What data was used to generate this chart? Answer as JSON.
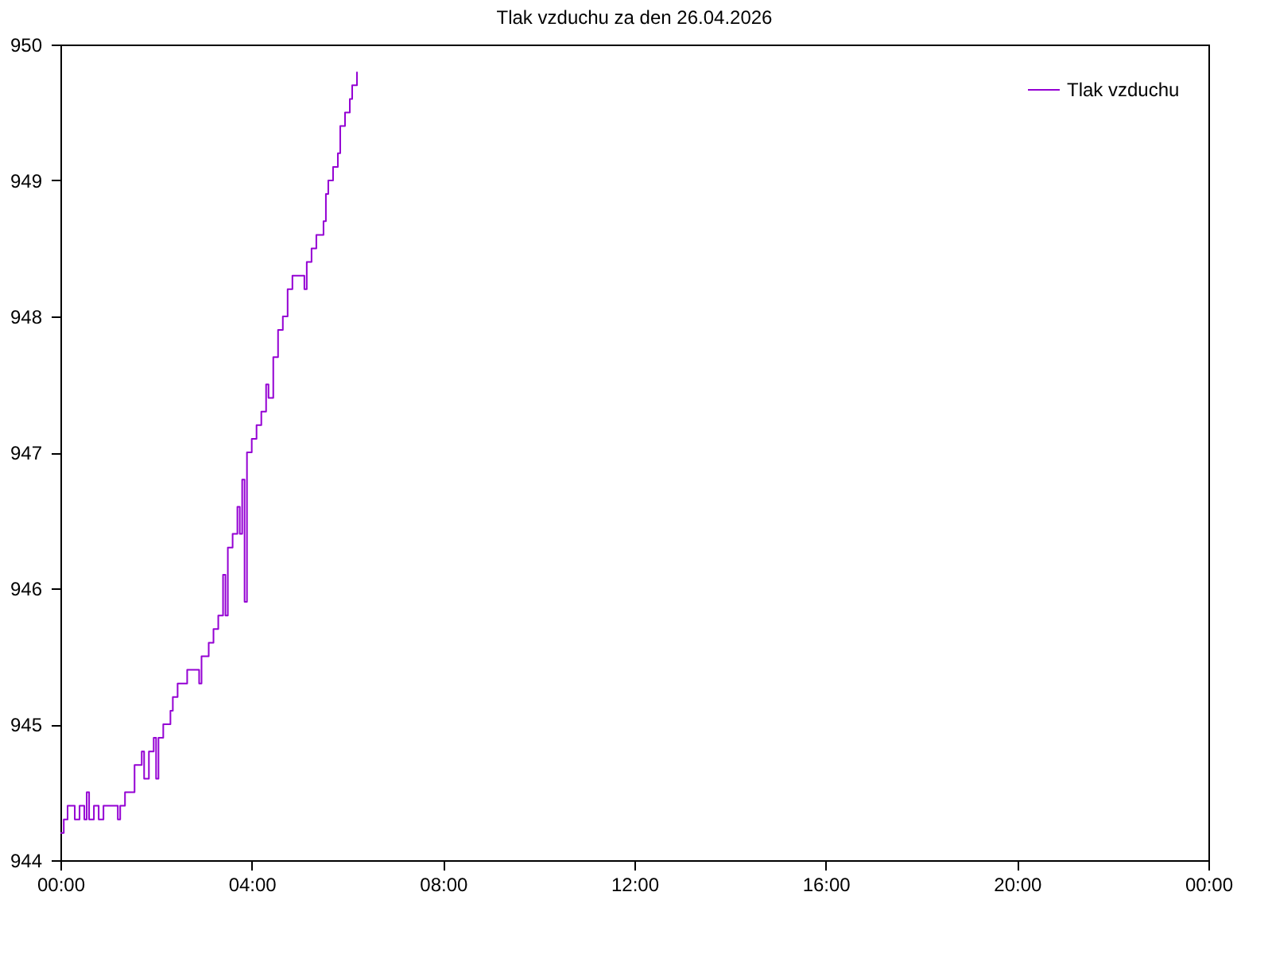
{
  "chart_data": {
    "type": "step",
    "title": "Tlak vzduchu za den 26.04.2026",
    "x": [
      0.0,
      0.07,
      0.15,
      0.3,
      0.4,
      0.5,
      0.55,
      0.6,
      0.7,
      0.8,
      0.9,
      1.1,
      1.2,
      1.25,
      1.35,
      1.5,
      1.55,
      1.65,
      1.7,
      1.75,
      1.85,
      1.95,
      2.0,
      2.05,
      2.15,
      2.3,
      2.35,
      2.45,
      2.6,
      2.65,
      2.85,
      2.9,
      2.95,
      3.1,
      3.2,
      3.3,
      3.4,
      3.45,
      3.5,
      3.6,
      3.7,
      3.75,
      3.8,
      3.85,
      3.9,
      4.0,
      4.1,
      4.2,
      4.3,
      4.35,
      4.45,
      4.55,
      4.65,
      4.75,
      4.85,
      5.05,
      5.1,
      5.15,
      5.25,
      5.35,
      5.5,
      5.55,
      5.6,
      5.7,
      5.8,
      5.85,
      5.95,
      6.05,
      6.1,
      6.2
    ],
    "series": [
      {
        "name": "Tlak vzduchu",
        "color": "#9400d3",
        "values": [
          944.2,
          944.3,
          944.4,
          944.3,
          944.4,
          944.3,
          944.5,
          944.3,
          944.4,
          944.3,
          944.4,
          944.4,
          944.3,
          944.4,
          944.5,
          944.5,
          944.7,
          944.7,
          944.8,
          944.6,
          944.8,
          944.9,
          944.6,
          944.9,
          945.0,
          945.1,
          945.2,
          945.3,
          945.3,
          945.4,
          945.4,
          945.3,
          945.5,
          945.6,
          945.7,
          945.8,
          946.1,
          945.8,
          946.3,
          946.4,
          946.6,
          946.4,
          946.8,
          945.9,
          947.0,
          947.1,
          947.2,
          947.3,
          947.5,
          947.4,
          947.7,
          947.9,
          948.0,
          948.2,
          948.3,
          948.3,
          948.2,
          948.4,
          948.5,
          948.6,
          948.7,
          948.9,
          949.0,
          949.1,
          949.2,
          949.4,
          949.5,
          949.6,
          949.7,
          949.8
        ]
      }
    ],
    "xlim": [
      0,
      24
    ],
    "xticks": [
      {
        "value": 0,
        "label": "00:00"
      },
      {
        "value": 4,
        "label": "04:00"
      },
      {
        "value": 8,
        "label": "08:00"
      },
      {
        "value": 12,
        "label": "12:00"
      },
      {
        "value": 16,
        "label": "16:00"
      },
      {
        "value": 20,
        "label": "20:00"
      },
      {
        "value": 24,
        "label": "00:00"
      }
    ],
    "ylim": [
      944,
      950
    ],
    "yticks": [
      944,
      945,
      946,
      947,
      948,
      949,
      950
    ],
    "grid": false,
    "legend": "top right",
    "line_style": "solid",
    "marker": "none"
  }
}
